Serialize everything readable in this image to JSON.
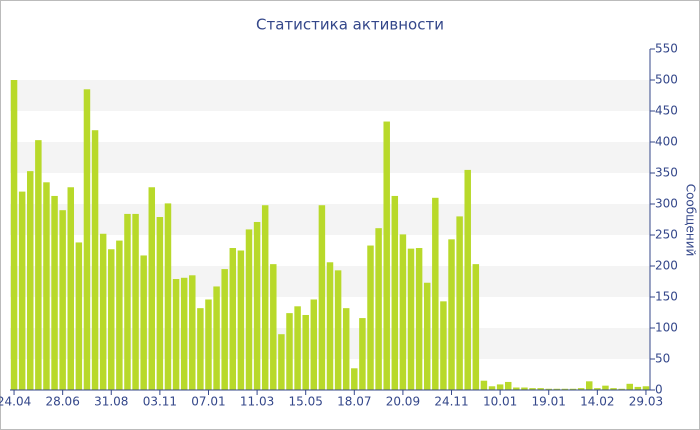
{
  "chart_data": {
    "type": "bar",
    "title": "Статистика активности",
    "y_axis_label": "Сообщений",
    "categories": [
      "24.04",
      null,
      null,
      null,
      null,
      null,
      "28.06",
      null,
      null,
      null,
      null,
      null,
      "31.08",
      null,
      null,
      null,
      null,
      null,
      "03.11",
      null,
      null,
      null,
      null,
      null,
      "07.01",
      null,
      null,
      null,
      null,
      null,
      "11.03",
      null,
      null,
      null,
      null,
      null,
      "15.05",
      null,
      null,
      null,
      null,
      null,
      "18.07",
      null,
      null,
      null,
      null,
      null,
      "20.09",
      null,
      null,
      null,
      null,
      null,
      "24.11",
      null,
      null,
      null,
      null,
      null,
      "10.01",
      null,
      null,
      null,
      null,
      null,
      "19.01",
      null,
      null,
      null,
      null,
      null,
      "14.02",
      null,
      null,
      null,
      null,
      null,
      "29.03"
    ],
    "values": [
      500,
      320,
      353,
      403,
      335,
      313,
      290,
      327,
      238,
      485,
      419,
      252,
      227,
      241,
      284,
      284,
      217,
      327,
      279,
      301,
      179,
      181,
      185,
      132,
      146,
      167,
      195,
      229,
      225,
      259,
      271,
      298,
      203,
      90,
      124,
      135,
      121,
      146,
      298,
      206,
      193,
      132,
      35,
      116,
      233,
      261,
      433,
      313,
      251,
      228,
      229,
      173,
      310,
      143,
      243,
      280,
      355,
      203,
      15,
      6,
      9,
      13,
      4,
      4,
      3,
      3,
      2,
      2,
      2,
      2,
      3,
      14,
      3,
      7,
      3,
      2,
      10,
      5,
      6
    ],
    "color": "#b8d92a",
    "ylim": [
      0,
      550
    ],
    "yticks": [
      0,
      50,
      100,
      150,
      200,
      250,
      300,
      350,
      400,
      450,
      500,
      550
    ],
    "bands": true,
    "y_axis_side": "right"
  }
}
